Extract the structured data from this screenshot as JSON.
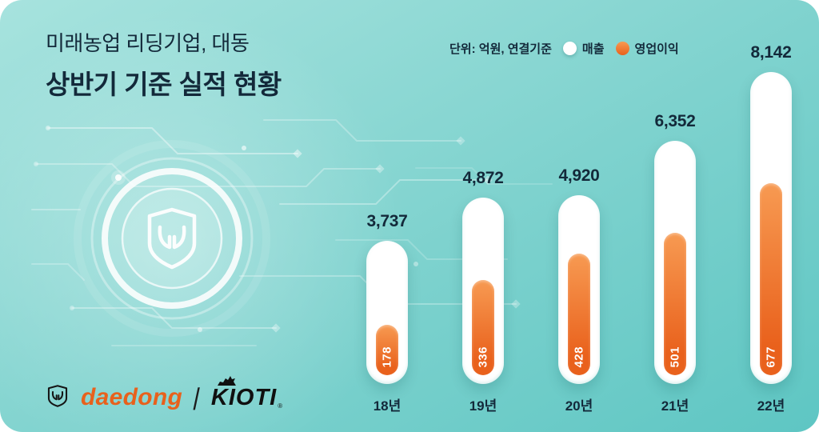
{
  "header": {
    "title_line1": "미래농업 리딩기업, 대동",
    "title_line2": "상반기 기준 실적 현황"
  },
  "legend": {
    "unit_label": "단위: 억원, 연결기준",
    "revenue_label": "매출",
    "profit_label": "영업이익"
  },
  "chart_data": {
    "type": "bar",
    "title": "상반기 기준 실적 현황 (미래농업 리딩기업, 대동)",
    "unit": "억원, 연결기준",
    "categories": [
      "18년",
      "19년",
      "20년",
      "21년",
      "22년"
    ],
    "series": [
      {
        "name": "매출",
        "values": [
          3737,
          4872,
          4920,
          6352,
          8142
        ]
      },
      {
        "name": "영업이익",
        "values": [
          178,
          336,
          428,
          501,
          677
        ]
      }
    ],
    "value_labels": [
      "3,737",
      "4,872",
      "4,920",
      "6,352",
      "8,142"
    ],
    "profit_labels": [
      "178",
      "336",
      "428",
      "501",
      "677"
    ],
    "ylim": [
      0,
      8142
    ],
    "legend_position": "top",
    "grid": false
  },
  "footer": {
    "daedong_logo_text": "daedong",
    "separator": "|",
    "kioti_logo_text": "KIOTI",
    "kioti_reg": "®"
  },
  "colors": {
    "background_top": "#A7E3DE",
    "background_bottom": "#5EC6C3",
    "bar_white": "#FFFFFF",
    "orange_top": "#F79A52",
    "orange_bottom": "#E9611C",
    "text_dark": "#13293A",
    "daedong_orange": "#E8611C"
  }
}
